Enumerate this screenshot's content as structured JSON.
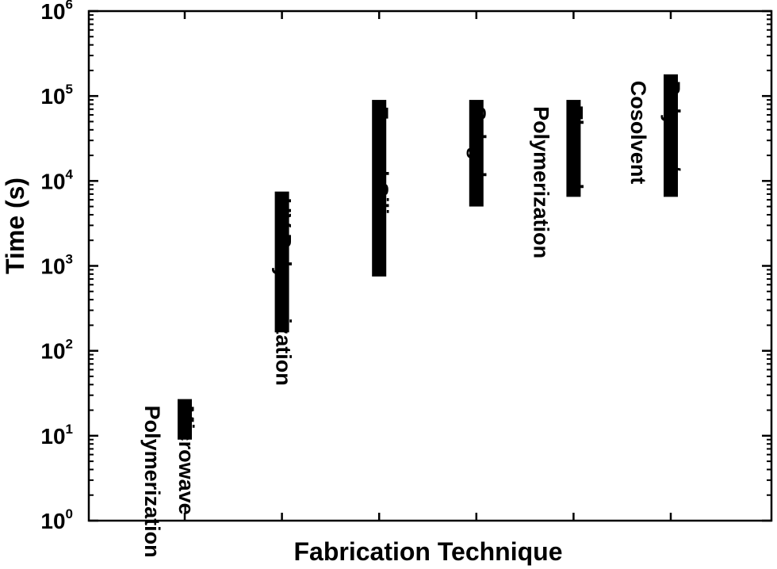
{
  "chart_data": {
    "type": "range-bar",
    "xlabel": "Fabrication Technique",
    "ylabel": "Time (s)",
    "yscale": "log",
    "ylim": [
      1,
      1000000
    ],
    "y_ticks": [
      {
        "base": "10",
        "exp": "0"
      },
      {
        "base": "10",
        "exp": "1"
      },
      {
        "base": "10",
        "exp": "2"
      },
      {
        "base": "10",
        "exp": "3"
      },
      {
        "base": "10",
        "exp": "4"
      },
      {
        "base": "10",
        "exp": "5"
      },
      {
        "base": "10",
        "exp": "6"
      }
    ],
    "grid": false,
    "bars": [
      {
        "label_lines": [
          "Microwave",
          "Polymerization"
        ],
        "low": 9,
        "high": 27
      },
      {
        "label_lines": [
          "UV Polymerization"
        ],
        "low": 165,
        "high": 7500
      },
      {
        "label_lines": [
          "Fumed Silica"
        ],
        "low": 750,
        "high": 90000
      },
      {
        "label_lines": [
          "Sol-gel"
        ],
        "low": 5000,
        "high": 90000
      },
      {
        "label_lines": [
          "Thermal",
          "Polymerization"
        ],
        "low": 6500,
        "high": 90000
      },
      {
        "label_lines": [
          "Polymer/",
          "Cosolvent"
        ],
        "low": 6500,
        "high": 180000
      }
    ],
    "bar_color": "#000000"
  }
}
